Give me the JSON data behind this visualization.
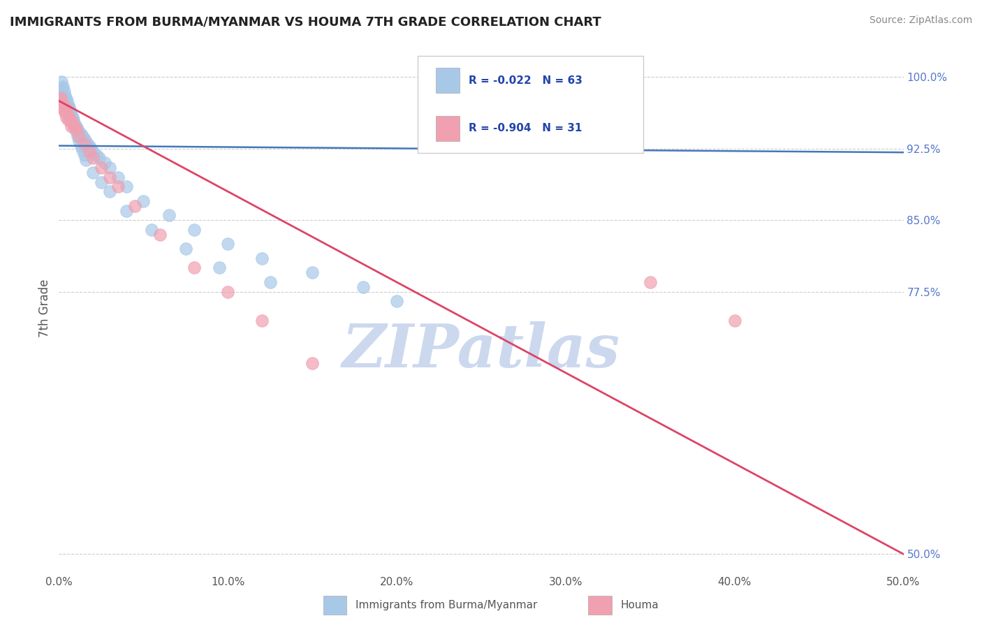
{
  "title": "IMMIGRANTS FROM BURMA/MYANMAR VS HOUMA 7TH GRADE CORRELATION CHART",
  "source": "Source: ZipAtlas.com",
  "xlabel": "",
  "ylabel": "7th Grade",
  "legend_label1": "Immigrants from Burma/Myanmar",
  "legend_label2": "Houma",
  "R1": -0.022,
  "N1": 63,
  "R2": -0.904,
  "N2": 31,
  "xlim": [
    0.0,
    50.0
  ],
  "ylim": [
    48.0,
    103.5
  ],
  "yticks": [
    50.0,
    77.5,
    85.0,
    92.5,
    100.0
  ],
  "xticks": [
    0.0,
    10.0,
    20.0,
    30.0,
    40.0,
    50.0
  ],
  "color_blue": "#a8c8e8",
  "color_pink": "#f0a0b0",
  "line_blue": "#4477bb",
  "line_pink": "#dd4466",
  "title_color": "#222222",
  "watermark": "ZIPatlas",
  "watermark_color": "#ccd8ee",
  "background_color": "#ffffff",
  "blue_line_y_at_0": 92.8,
  "blue_line_y_at_50": 92.1,
  "pink_line_y_at_0": 97.5,
  "pink_line_y_at_50": 50.0,
  "blue_scatter_x": [
    0.15,
    0.2,
    0.25,
    0.3,
    0.35,
    0.4,
    0.5,
    0.55,
    0.6,
    0.65,
    0.7,
    0.75,
    0.8,
    0.85,
    0.9,
    0.95,
    1.0,
    1.1,
    1.2,
    1.3,
    1.4,
    1.5,
    1.6,
    1.7,
    1.8,
    1.9,
    2.0,
    2.2,
    2.4,
    2.7,
    3.0,
    3.5,
    4.0,
    5.0,
    6.5,
    8.0,
    10.0,
    12.0,
    15.0,
    18.0,
    0.3,
    0.4,
    0.5,
    0.6,
    0.7,
    0.8,
    0.9,
    1.0,
    1.1,
    1.2,
    1.3,
    1.4,
    1.5,
    1.6,
    2.0,
    2.5,
    3.0,
    4.0,
    5.5,
    7.5,
    9.5,
    12.5,
    20.0
  ],
  "blue_scatter_y": [
    99.5,
    98.8,
    99.0,
    98.5,
    98.0,
    97.8,
    97.5,
    97.0,
    96.8,
    96.5,
    96.2,
    96.0,
    95.8,
    95.5,
    95.2,
    95.0,
    94.8,
    94.5,
    94.2,
    94.0,
    93.8,
    93.5,
    93.2,
    93.0,
    92.8,
    92.5,
    92.2,
    91.8,
    91.5,
    91.0,
    90.5,
    89.5,
    88.5,
    87.0,
    85.5,
    84.0,
    82.5,
    81.0,
    79.5,
    78.0,
    97.8,
    97.2,
    96.8,
    96.3,
    95.8,
    95.3,
    94.8,
    94.3,
    93.8,
    93.3,
    92.8,
    92.3,
    91.8,
    91.3,
    90.0,
    89.0,
    88.0,
    86.0,
    84.0,
    82.0,
    80.0,
    78.5,
    76.5
  ],
  "pink_scatter_x": [
    0.1,
    0.2,
    0.3,
    0.4,
    0.5,
    0.6,
    0.7,
    0.8,
    0.9,
    1.0,
    1.2,
    1.5,
    1.8,
    2.0,
    2.5,
    3.0,
    3.5,
    4.5,
    6.0,
    8.0,
    10.0,
    12.0,
    15.0,
    35.0,
    40.0,
    0.15,
    0.25,
    0.35,
    0.45,
    0.55,
    0.75
  ],
  "pink_scatter_y": [
    97.8,
    97.0,
    96.5,
    96.8,
    96.2,
    95.8,
    95.5,
    95.2,
    94.8,
    94.5,
    93.8,
    93.0,
    92.2,
    91.5,
    90.5,
    89.5,
    88.5,
    86.5,
    83.5,
    80.0,
    77.5,
    74.5,
    70.0,
    78.5,
    74.5,
    97.5,
    96.8,
    96.3,
    95.8,
    95.5,
    94.8
  ]
}
